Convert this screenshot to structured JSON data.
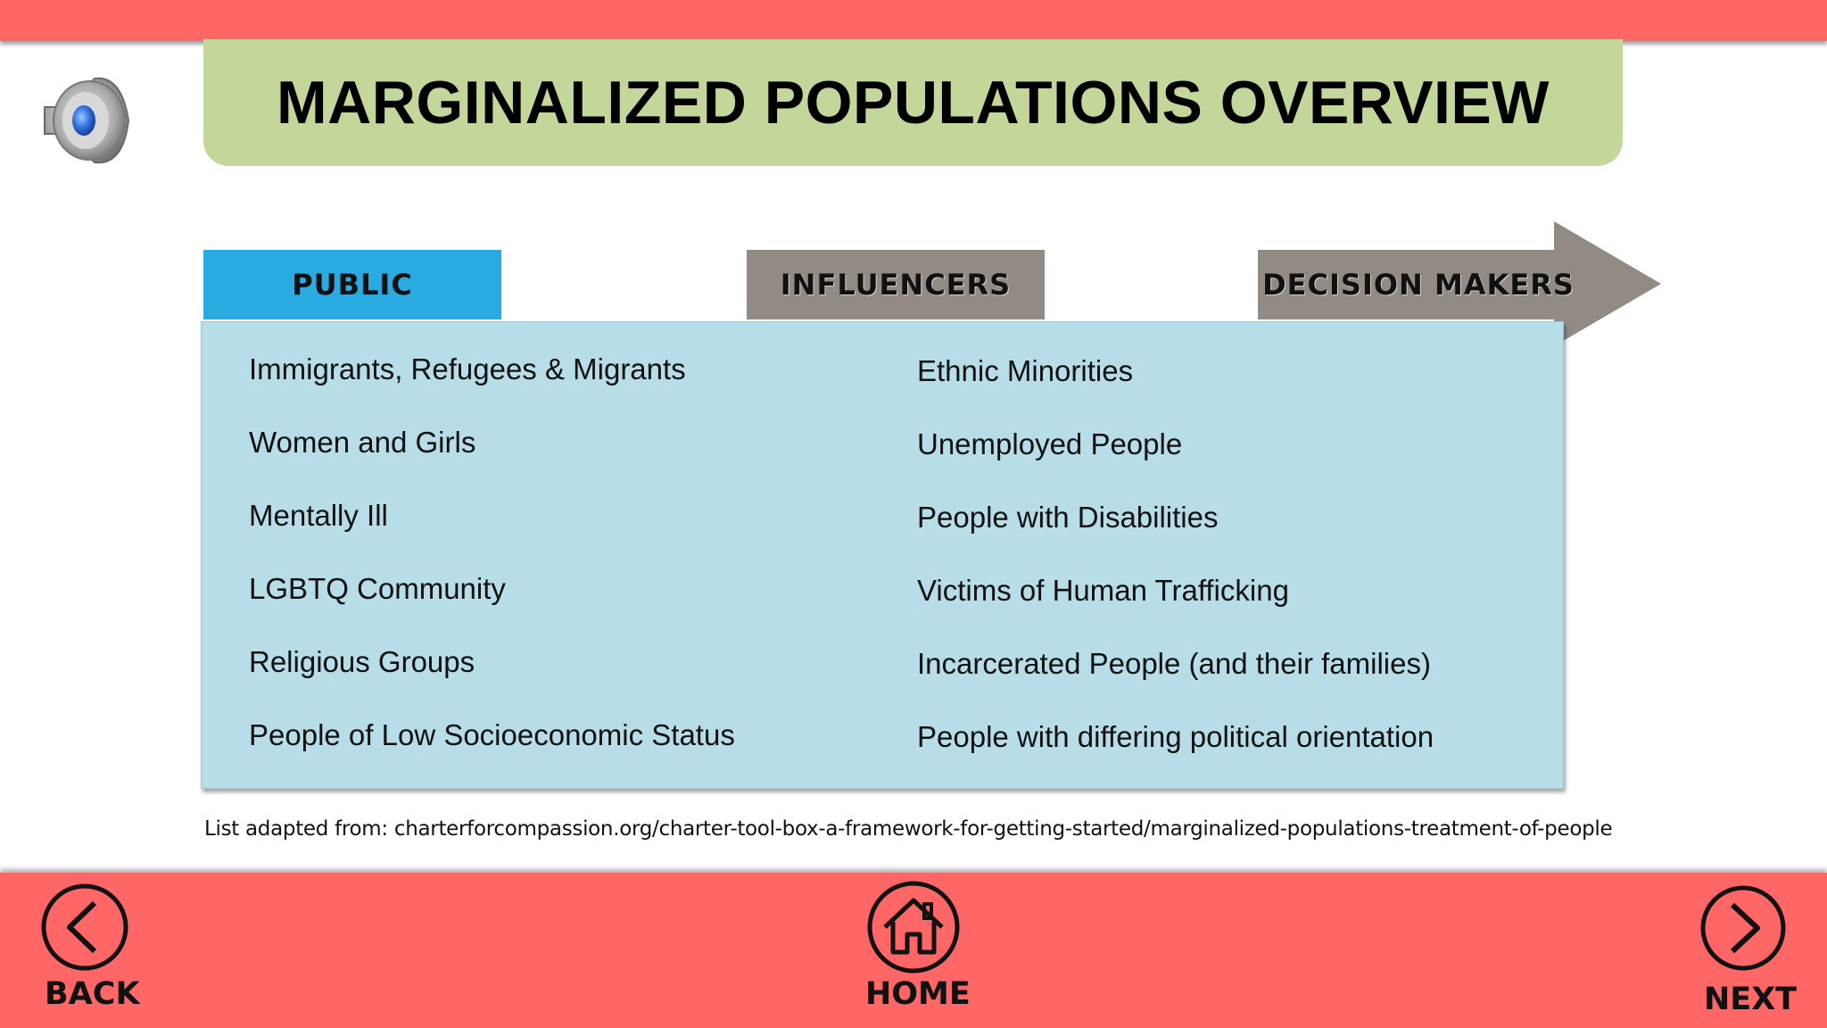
{
  "title": "MARGINALIZED POPULATIONS OVERVIEW",
  "tabs": {
    "public": "PUBLIC",
    "influencers": "INFLUENCERS",
    "decision_makers": "DECISION MAKERS"
  },
  "left_items": [
    "Immigrants, Refugees & Migrants",
    "Women and Girls",
    "Mentally Ill",
    "LGBTQ Community",
    "Religious Groups",
    "People of Low Socioeconomic Status"
  ],
  "right_items": [
    "Ethnic Minorities",
    "Unemployed People",
    "People with Disabilities",
    "Victims of Human Trafficking",
    "Incarcerated People (and their families)",
    "People with differing political orientation"
  ],
  "source": "List adapted from: charterforcompassion.org/charter-tool-box-a-framework-for-getting-started/marginalized-populations-treatment-of-people",
  "nav": {
    "back": "BACK",
    "home": "HOME",
    "next": "NEXT"
  },
  "icons": {
    "speaker": "speaker-icon",
    "back": "chevron-left-icon",
    "home": "home-icon",
    "next": "chevron-right-icon"
  },
  "colors": {
    "bars": "#ff6666",
    "title_banner": "#c4d79b",
    "public_tab": "#29abe2",
    "grey_tab": "#928b84",
    "panel": "#b7dde8"
  }
}
